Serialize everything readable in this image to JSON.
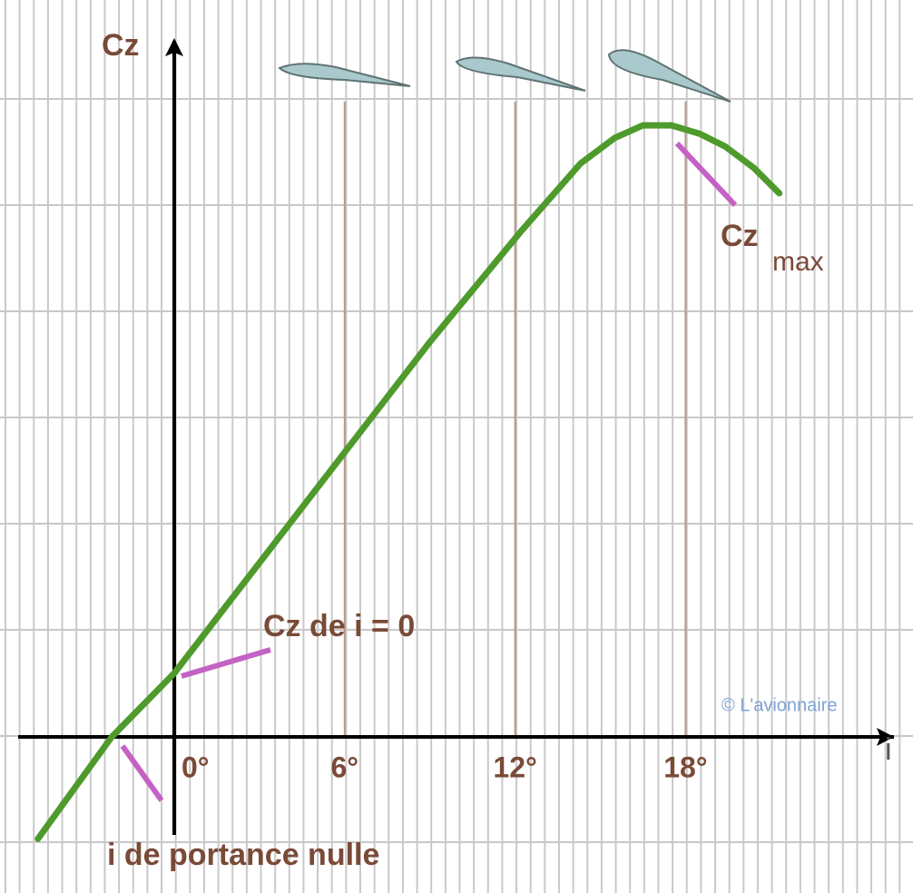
{
  "chart_data": {
    "type": "line",
    "y_label": "Cz",
    "x_label": "i",
    "x": [
      -4.8,
      -2.2,
      0,
      3,
      6,
      9,
      12.2,
      14.3,
      15.5,
      16.5,
      17.5,
      18.5,
      19.4,
      20.4,
      21.3
    ],
    "values": [
      -0.24,
      0,
      0.15,
      0.41,
      0.67,
      0.93,
      1.19,
      1.35,
      1.41,
      1.44,
      1.44,
      1.42,
      1.39,
      1.34,
      1.28
    ],
    "color": "#4e9a2c",
    "xlim": [
      -6,
      25
    ],
    "ylim": [
      -0.35,
      1.65
    ],
    "xticks": [
      {
        "value": 0,
        "label": "0°"
      },
      {
        "value": 6,
        "label": "6°"
      },
      {
        "value": 12,
        "label": "12°"
      },
      {
        "value": 18,
        "label": "18°"
      }
    ],
    "annotations": {
      "cz_zero": "Cz de  i = 0",
      "zero_lift": "i de portance nulle",
      "cz_max": "Cz",
      "cz_max_sub": "max",
      "credit": "© L'avionnaire"
    }
  }
}
